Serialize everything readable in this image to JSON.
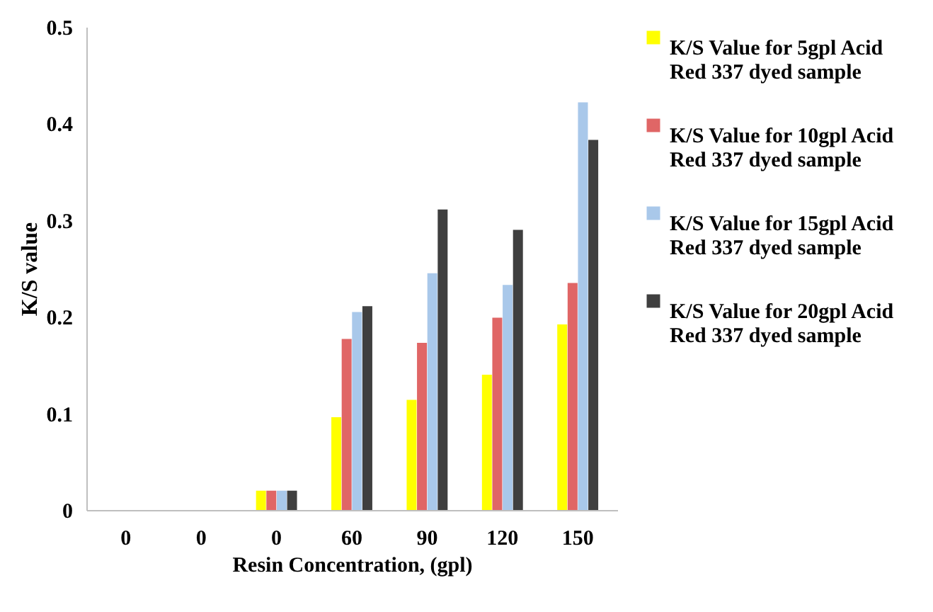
{
  "chart_data": {
    "type": "bar",
    "xlabel": "Resin Concentration, (gpl)",
    "ylabel": "K/S value",
    "categories": [
      "0",
      "0",
      "0",
      "60",
      "90",
      "120",
      "150"
    ],
    "series": [
      {
        "name": "K/S Value for 5gpl Acid Red 337 dyed sample",
        "color": "#ffff00",
        "values": [
          0,
          0,
          0.02,
          0.096,
          0.114,
          0.14,
          0.192
        ]
      },
      {
        "name": "K/S Value for 10gpl Acid Red 337 dyed sample",
        "color": "#e06666",
        "values": [
          0,
          0,
          0.02,
          0.177,
          0.173,
          0.199,
          0.235
        ]
      },
      {
        "name": "K/S Value for 15gpl Acid Red 337 dyed sample",
        "color": "#a9c8ea",
        "values": [
          0,
          0,
          0.02,
          0.205,
          0.245,
          0.233,
          0.422
        ]
      },
      {
        "name": "K/S Value for 20gpl Acid Red 337 dyed sample",
        "color": "#3f3f3f",
        "values": [
          0,
          0,
          0.02,
          0.211,
          0.311,
          0.29,
          0.383
        ]
      }
    ],
    "ylim": [
      0,
      0.5
    ],
    "yticks": [
      0,
      0.1,
      0.2,
      0.3,
      0.4,
      0.5
    ],
    "grid": false,
    "legend": "right"
  }
}
